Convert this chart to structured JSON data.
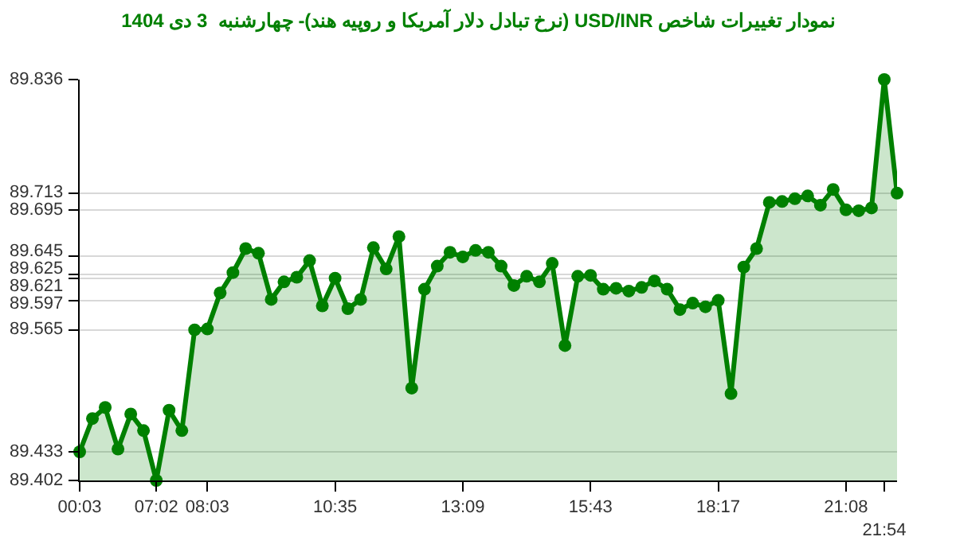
{
  "chart_data": {
    "type": "area",
    "title": "نمودار تغییرات شاخص USD/INR (نرخ تبادل دلار آمریکا و روپیه هند)- چهارشنبه  3 دی 1404",
    "categories": [
      "00:03",
      null,
      null,
      null,
      null,
      null,
      "07:02",
      null,
      null,
      null,
      "08:03",
      null,
      null,
      null,
      null,
      null,
      null,
      null,
      null,
      null,
      "10:35",
      null,
      null,
      null,
      null,
      null,
      null,
      null,
      null,
      null,
      "13:09",
      null,
      null,
      null,
      null,
      null,
      null,
      null,
      null,
      null,
      "15:43",
      null,
      null,
      null,
      null,
      null,
      null,
      null,
      null,
      null,
      "18:17",
      null,
      null,
      null,
      null,
      null,
      null,
      null,
      null,
      null,
      "21:08",
      null,
      null,
      "21:54",
      null
    ],
    "series": [
      {
        "color": "#008000",
        "values": [
          89.433,
          89.469,
          89.481,
          89.436,
          89.474,
          89.456,
          89.402,
          89.478,
          89.456,
          89.565,
          89.566,
          89.605,
          89.627,
          89.653,
          89.648,
          89.598,
          89.617,
          89.622,
          89.64,
          89.591,
          89.621,
          89.588,
          89.598,
          89.654,
          89.631,
          89.666,
          89.502,
          89.609,
          89.634,
          89.649,
          89.644,
          89.651,
          89.649,
          89.634,
          89.613,
          89.623,
          89.617,
          89.637,
          89.548,
          89.623,
          89.624,
          89.609,
          89.61,
          89.607,
          89.611,
          89.618,
          89.609,
          89.587,
          89.594,
          89.59,
          89.597,
          89.496,
          89.633,
          89.653,
          89.703,
          89.704,
          89.707,
          89.71,
          89.7,
          89.717,
          89.695,
          89.694,
          89.697,
          89.836,
          89.713
        ]
      }
    ],
    "ylim": [
      89.402,
      89.836
    ],
    "yticks": [
      89.402,
      89.433,
      89.565,
      89.597,
      89.621,
      89.625,
      89.645,
      89.695,
      89.713,
      89.836
    ],
    "grid": "y",
    "marker": "circle",
    "line_style": "solid"
  }
}
